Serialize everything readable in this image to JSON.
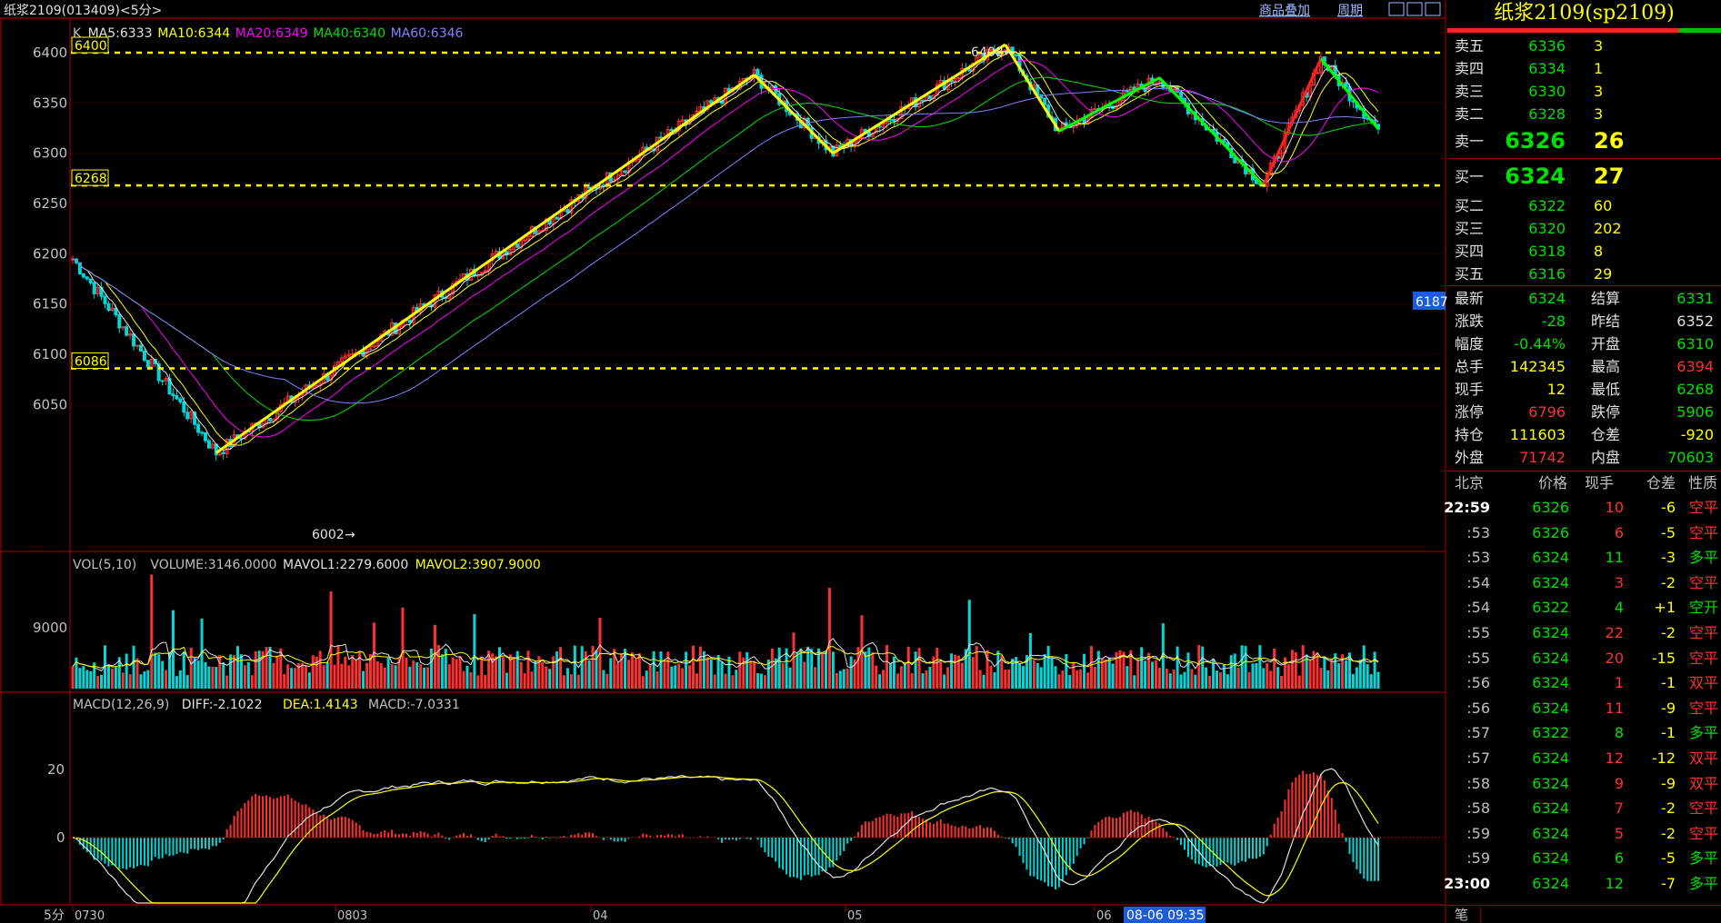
{
  "window": {
    "title": "纸浆2109(013409)<5分>",
    "links": [
      "商品叠加",
      "周期"
    ]
  },
  "main_chart": {
    "legend": [
      {
        "label": "K",
        "color": "#c0c0c0"
      },
      {
        "label": "MA5:6333",
        "color": "#e0e0e0"
      },
      {
        "label": "MA10:6344",
        "color": "#ffff00"
      },
      {
        "label": "MA20:6349",
        "color": "#ff00ff"
      },
      {
        "label": "MA40:6340",
        "color": "#00e000"
      },
      {
        "label": "MA60:6346",
        "color": "#8080ff"
      }
    ],
    "price_axis": [
      "6400",
      "6350",
      "6300",
      "6250",
      "6200",
      "6150",
      "6100",
      "6050"
    ],
    "hlines": [
      {
        "label": "6400",
        "price": 6400
      },
      {
        "label": "6268",
        "price": 6268
      },
      {
        "label": "6086",
        "price": 6086
      }
    ],
    "annotations": [
      {
        "label": "6408",
        "price": 6408
      },
      {
        "label": "6002",
        "price": 6002
      }
    ],
    "current_price_tag": "6187"
  },
  "volume_chart": {
    "legend": [
      {
        "label": "VOL(5,10)",
        "color": "#c0c0c0"
      },
      {
        "label": "VOLUME:3146.0000",
        "color": "#c0c0c0"
      },
      {
        "label": "MAVOL1:2279.6000",
        "color": "#e0e0e0"
      },
      {
        "label": "MAVOL2:3907.9000",
        "color": "#ffff00"
      }
    ],
    "axis_label": "9000"
  },
  "macd_chart": {
    "legend": [
      {
        "label": "MACD(12,26,9)",
        "color": "#c0c0c0"
      },
      {
        "label": "DIFF:-2.1022",
        "color": "#e0e0e0"
      },
      {
        "label": "DEA:1.4143",
        "color": "#ffff00"
      },
      {
        "label": "MACD:-7.0331",
        "color": "#c0c0c0"
      }
    ],
    "axis_labels": [
      "20",
      "0"
    ]
  },
  "time_axis": {
    "period": "5分",
    "labels": [
      "0730",
      "0803",
      "04",
      "05",
      "06"
    ],
    "cursor_label": "08-06 09:35"
  },
  "quote_panel": {
    "title": "纸浆2109(sp2109)",
    "asks": [
      {
        "label": "卖五",
        "price": "6336",
        "vol": "3"
      },
      {
        "label": "卖四",
        "price": "6334",
        "vol": "1"
      },
      {
        "label": "卖三",
        "price": "6330",
        "vol": "3"
      },
      {
        "label": "卖二",
        "price": "6328",
        "vol": "3"
      },
      {
        "label": "卖一",
        "price": "6326",
        "vol": "26"
      }
    ],
    "bids": [
      {
        "label": "买一",
        "price": "6324",
        "vol": "27"
      },
      {
        "label": "买二",
        "price": "6322",
        "vol": "60"
      },
      {
        "label": "买三",
        "price": "6320",
        "vol": "202"
      },
      {
        "label": "买四",
        "price": "6318",
        "vol": "8"
      },
      {
        "label": "买五",
        "price": "6316",
        "vol": "29"
      }
    ],
    "stats": [
      {
        "l1": "最新",
        "v1": "6324",
        "c1": "#00e000",
        "l2": "结算",
        "v2": "6331",
        "c2": "#00e000"
      },
      {
        "l1": "涨跌",
        "v1": "-28",
        "c1": "#00e000",
        "l2": "昨结",
        "v2": "6352",
        "c2": "#e0e0e0"
      },
      {
        "l1": "幅度",
        "v1": "-0.44%",
        "c1": "#00e000",
        "l2": "开盘",
        "v2": "6310",
        "c2": "#00e000"
      },
      {
        "l1": "总手",
        "v1": "142345",
        "c1": "#ffff00",
        "l2": "最高",
        "v2": "6394",
        "c2": "#ff3030"
      },
      {
        "l1": "现手",
        "v1": "12",
        "c1": "#ffff00",
        "l2": "最低",
        "v2": "6268",
        "c2": "#00e000"
      },
      {
        "l1": "涨停",
        "v1": "6796",
        "c1": "#ff3030",
        "l2": "跌停",
        "v2": "5906",
        "c2": "#00e000"
      },
      {
        "l1": "持仓",
        "v1": "111603",
        "c1": "#ffff00",
        "l2": "仓差",
        "v2": "-920",
        "c2": "#ffff00"
      },
      {
        "l1": "外盘",
        "v1": "71742",
        "c1": "#ff3030",
        "l2": "内盘",
        "v2": "70603",
        "c2": "#00e000"
      }
    ],
    "ticks_header": [
      "北京",
      "价格",
      "现手",
      "仓差",
      "性质"
    ],
    "ticks": [
      {
        "time": "22:59",
        "price": "6326",
        "vol": "10",
        "vc": "#ff3030",
        "diff": "-6",
        "nature": "空平",
        "nc": "#ff3030"
      },
      {
        "time": ":53",
        "price": "6326",
        "vol": "6",
        "vc": "#ff3030",
        "diff": "-5",
        "nature": "空平",
        "nc": "#ff3030"
      },
      {
        "time": ":53",
        "price": "6324",
        "vol": "11",
        "vc": "#00e000",
        "diff": "-3",
        "nature": "多平",
        "nc": "#00e000"
      },
      {
        "time": ":54",
        "price": "6324",
        "vol": "3",
        "vc": "#ff3030",
        "diff": "-2",
        "nature": "空平",
        "nc": "#ff3030"
      },
      {
        "time": ":54",
        "price": "6322",
        "vol": "4",
        "vc": "#00e000",
        "diff": "+1",
        "nature": "空开",
        "nc": "#00e000"
      },
      {
        "time": ":55",
        "price": "6324",
        "vol": "22",
        "vc": "#ff3030",
        "diff": "-2",
        "nature": "空平",
        "nc": "#ff3030"
      },
      {
        "time": ":55",
        "price": "6324",
        "vol": "20",
        "vc": "#ff3030",
        "diff": "-15",
        "nature": "空平",
        "nc": "#ff3030"
      },
      {
        "time": ":56",
        "price": "6324",
        "vol": "1",
        "vc": "#ff3030",
        "diff": "-1",
        "nature": "双平",
        "nc": "#ff3030"
      },
      {
        "time": ":56",
        "price": "6324",
        "vol": "11",
        "vc": "#ff3030",
        "diff": "-9",
        "nature": "空平",
        "nc": "#ff3030"
      },
      {
        "time": ":57",
        "price": "6322",
        "vol": "8",
        "vc": "#00e000",
        "diff": "-1",
        "nature": "多平",
        "nc": "#00e000"
      },
      {
        "time": ":57",
        "price": "6324",
        "vol": "12",
        "vc": "#ff3030",
        "diff": "-12",
        "nature": "双平",
        "nc": "#ff3030"
      },
      {
        "time": ":58",
        "price": "6324",
        "vol": "9",
        "vc": "#ff3030",
        "diff": "-9",
        "nature": "双平",
        "nc": "#ff3030"
      },
      {
        "time": ":58",
        "price": "6324",
        "vol": "7",
        "vc": "#ff3030",
        "diff": "-2",
        "nature": "空平",
        "nc": "#ff3030"
      },
      {
        "time": ":59",
        "price": "6324",
        "vol": "5",
        "vc": "#ff3030",
        "diff": "-2",
        "nature": "空平",
        "nc": "#ff3030"
      },
      {
        "time": ":59",
        "price": "6324",
        "vol": "6",
        "vc": "#00e000",
        "diff": "-5",
        "nature": "多平",
        "nc": "#00e000"
      },
      {
        "time": "23:00",
        "price": "6324",
        "vol": "12",
        "vc": "#00e000",
        "diff": "-7",
        "nature": "多平",
        "nc": "#00e000"
      }
    ],
    "bottom_tab": "笔"
  },
  "chart_data": {
    "type": "candlestick",
    "price_range": [
      6002,
      6408
    ],
    "turning_points": [
      {
        "price": 6195
      },
      {
        "price": 6002
      },
      {
        "price": 6378
      },
      {
        "price": 6300
      },
      {
        "price": 6408
      },
      {
        "price": 6322
      },
      {
        "price": 6375
      },
      {
        "price": 6268
      },
      {
        "price": 6394
      },
      {
        "price": 6324
      }
    ]
  }
}
